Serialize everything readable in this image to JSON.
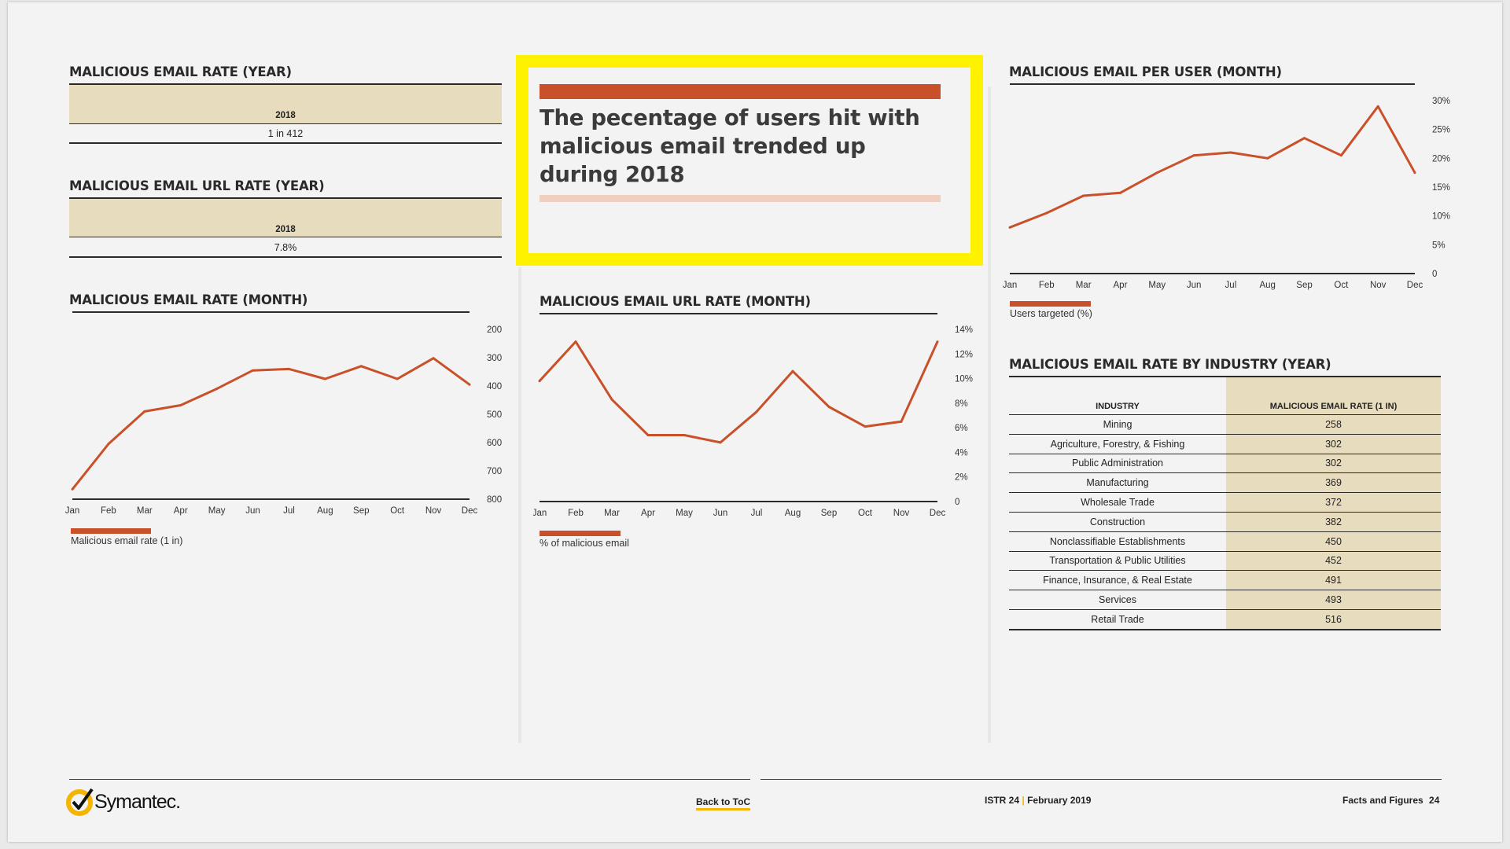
{
  "left": {
    "year_rate": {
      "title": "MALICIOUS EMAIL RATE (YEAR)",
      "year": "2018",
      "value": "1 in 412"
    },
    "url_year_rate": {
      "title": "MALICIOUS EMAIL URL RATE (YEAR)",
      "year": "2018",
      "value": "7.8%"
    }
  },
  "callout": {
    "text": "The pecentage of users hit with malicious email trended up during 2018"
  },
  "industry": {
    "title": "MALICIOUS EMAIL RATE BY INDUSTRY (YEAR)",
    "headers": [
      "INDUSTRY",
      "MALICIOUS EMAIL RATE (1 IN)"
    ],
    "rows": [
      [
        "Mining",
        "258"
      ],
      [
        "Agriculture, Forestry, & Fishing",
        "302"
      ],
      [
        "Public Administration",
        "302"
      ],
      [
        "Manufacturing",
        "369"
      ],
      [
        "Wholesale Trade",
        "372"
      ],
      [
        "Construction",
        "382"
      ],
      [
        "Nonclassifiable Establishments",
        "450"
      ],
      [
        "Transportation & Public Utilities",
        "452"
      ],
      [
        "Finance, Insurance, & Real Estate",
        "491"
      ],
      [
        "Services",
        "493"
      ],
      [
        "Retail Trade",
        "516"
      ]
    ]
  },
  "footer": {
    "logo": "Symantec.",
    "back": "Back to ToC",
    "issue": "ISTR 24",
    "date": "February 2019",
    "section": "Facts and Figures",
    "page": "24"
  },
  "colors": {
    "accent": "#c9512a",
    "highlight": "#fff200",
    "beige": "#e8dcbe",
    "logo_yellow": "#f5b400"
  },
  "chart_data": [
    {
      "id": "rate-month",
      "type": "line",
      "title": "MALICIOUS EMAIL RATE (MONTH)",
      "categories": [
        "Jan",
        "Feb",
        "Mar",
        "Apr",
        "May",
        "Jun",
        "Jul",
        "Aug",
        "Sep",
        "Oct",
        "Nov",
        "Dec"
      ],
      "series": [
        {
          "name": "Malicious email rate (1 in)",
          "values": [
            765,
            605,
            490,
            468,
            410,
            345,
            340,
            375,
            330,
            375,
            302,
            395
          ]
        }
      ],
      "ylim": [
        200,
        800
      ],
      "y_inverted": true,
      "yticks": [
        "200",
        "300",
        "400",
        "500",
        "600",
        "700",
        "800"
      ],
      "legend": "Malicious email rate (1 in)"
    },
    {
      "id": "url-month",
      "type": "line",
      "title": "MALICIOUS EMAIL URL RATE (MONTH)",
      "categories": [
        "Jan",
        "Feb",
        "Mar",
        "Apr",
        "May",
        "Jun",
        "Jul",
        "Aug",
        "Sep",
        "Oct",
        "Nov",
        "Dec"
      ],
      "series": [
        {
          "name": "% of malicious email",
          "values": [
            9.8,
            13.0,
            8.3,
            5.4,
            5.4,
            4.8,
            7.3,
            10.6,
            7.7,
            6.1,
            6.5,
            13.0
          ]
        }
      ],
      "ylim": [
        0,
        14
      ],
      "yticks": [
        "0",
        "2%",
        "4%",
        "6%",
        "8%",
        "10%",
        "12%",
        "14%"
      ],
      "legend": "% of malicious email"
    },
    {
      "id": "per-user",
      "type": "line",
      "title": "MALICIOUS EMAIL PER USER (MONTH)",
      "categories": [
        "Jan",
        "Feb",
        "Mar",
        "Apr",
        "May",
        "Jun",
        "Jul",
        "Aug",
        "Sep",
        "Oct",
        "Nov",
        "Dec"
      ],
      "series": [
        {
          "name": "Users targeted (%)",
          "values": [
            8,
            10.5,
            13.5,
            14,
            17.5,
            20.5,
            21,
            20,
            23.5,
            20.5,
            29,
            17.5
          ]
        }
      ],
      "ylim": [
        0,
        30
      ],
      "yticks": [
        "0",
        "5%",
        "10%",
        "15%",
        "20%",
        "25%",
        "30%"
      ],
      "legend": "Users targeted (%)"
    }
  ]
}
